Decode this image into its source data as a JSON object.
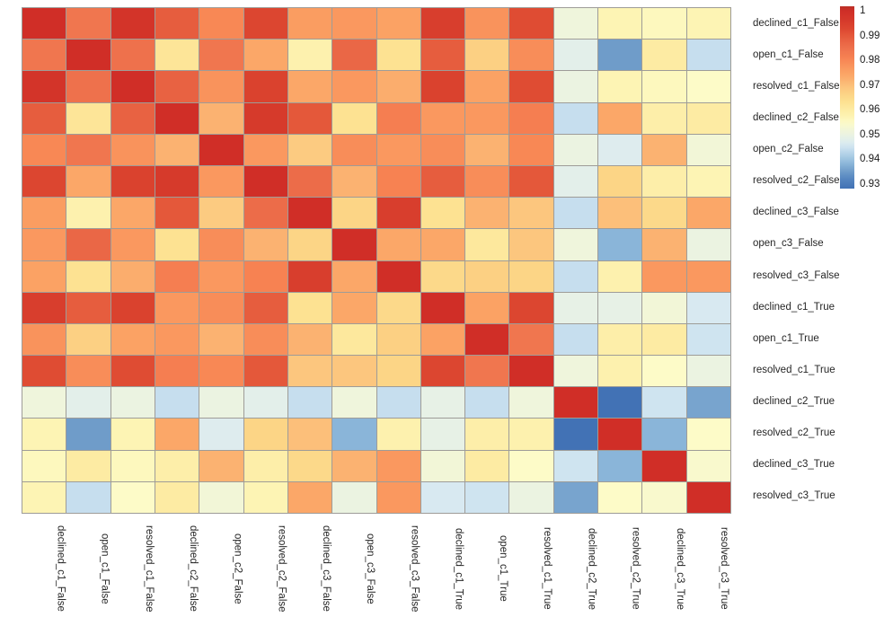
{
  "chart_data": {
    "type": "heatmap",
    "title": "",
    "xlabel": "",
    "ylabel": "",
    "grid_line_color": "#9e9c98",
    "background": "#ffffff",
    "legend_position": "right-top",
    "labels": [
      "declined_c1_False",
      "open_c1_False",
      "resolved_c1_False",
      "declined_c2_False",
      "open_c2_False",
      "resolved_c2_False",
      "declined_c3_False",
      "open_c3_False",
      "resolved_c3_False",
      "declined_c1_True",
      "open_c1_True",
      "resolved_c1_True",
      "declined_c2_True",
      "resolved_c2_True",
      "declined_c3_True",
      "resolved_c3_True"
    ],
    "matrix": [
      [
        1.0,
        0.984,
        0.998,
        0.989,
        0.98,
        0.993,
        0.976,
        0.977,
        0.975,
        0.995,
        0.978,
        0.992,
        0.951,
        0.957,
        0.956,
        0.957
      ],
      [
        0.984,
        1.0,
        0.985,
        0.962,
        0.984,
        0.974,
        0.958,
        0.987,
        0.963,
        0.989,
        0.967,
        0.979,
        0.948,
        0.935,
        0.96,
        0.944
      ],
      [
        0.998,
        0.985,
        1.0,
        0.988,
        0.978,
        0.994,
        0.974,
        0.977,
        0.973,
        0.994,
        0.975,
        0.992,
        0.95,
        0.957,
        0.956,
        0.955
      ],
      [
        0.989,
        0.962,
        0.988,
        1.0,
        0.972,
        0.996,
        0.99,
        0.963,
        0.982,
        0.977,
        0.977,
        0.982,
        0.944,
        0.974,
        0.959,
        0.96
      ],
      [
        0.98,
        0.984,
        0.978,
        0.972,
        1.0,
        0.977,
        0.968,
        0.979,
        0.977,
        0.979,
        0.972,
        0.98,
        0.95,
        0.947,
        0.972,
        0.952
      ],
      [
        0.993,
        0.974,
        0.994,
        0.996,
        0.977,
        1.0,
        0.986,
        0.972,
        0.981,
        0.989,
        0.979,
        0.99,
        0.948,
        0.966,
        0.959,
        0.957
      ],
      [
        0.976,
        0.958,
        0.974,
        0.99,
        0.968,
        0.986,
        1.0,
        0.966,
        0.995,
        0.963,
        0.972,
        0.969,
        0.944,
        0.97,
        0.965,
        0.974
      ],
      [
        0.977,
        0.987,
        0.977,
        0.963,
        0.979,
        0.972,
        0.966,
        1.0,
        0.974,
        0.974,
        0.961,
        0.969,
        0.951,
        0.938,
        0.972,
        0.95
      ],
      [
        0.975,
        0.963,
        0.973,
        0.982,
        0.977,
        0.981,
        0.995,
        0.974,
        1.0,
        0.965,
        0.967,
        0.966,
        0.944,
        0.958,
        0.977,
        0.977
      ],
      [
        0.995,
        0.989,
        0.994,
        0.977,
        0.979,
        0.989,
        0.963,
        0.974,
        0.965,
        1.0,
        0.975,
        0.993,
        0.949,
        0.949,
        0.952,
        0.946
      ],
      [
        0.978,
        0.967,
        0.975,
        0.977,
        0.972,
        0.979,
        0.972,
        0.961,
        0.967,
        0.975,
        1.0,
        0.984,
        0.944,
        0.959,
        0.96,
        0.945
      ],
      [
        0.992,
        0.979,
        0.992,
        0.982,
        0.98,
        0.99,
        0.969,
        0.969,
        0.966,
        0.993,
        0.984,
        1.0,
        0.951,
        0.958,
        0.955,
        0.95
      ],
      [
        0.951,
        0.948,
        0.95,
        0.944,
        0.95,
        0.948,
        0.944,
        0.951,
        0.944,
        0.949,
        0.944,
        0.951,
        1.0,
        0.928,
        0.945,
        0.936
      ],
      [
        0.957,
        0.935,
        0.957,
        0.974,
        0.947,
        0.966,
        0.97,
        0.938,
        0.958,
        0.949,
        0.959,
        0.958,
        0.928,
        1.0,
        0.938,
        0.955
      ],
      [
        0.956,
        0.96,
        0.956,
        0.959,
        0.972,
        0.959,
        0.965,
        0.972,
        0.977,
        0.952,
        0.96,
        0.955,
        0.945,
        0.938,
        1.0,
        0.954
      ],
      [
        0.957,
        0.944,
        0.955,
        0.96,
        0.952,
        0.957,
        0.974,
        0.95,
        0.977,
        0.946,
        0.945,
        0.95,
        0.936,
        0.955,
        0.954,
        1.0
      ]
    ],
    "colorbar": {
      "ticks": [
        "1",
        "0.99",
        "0.98",
        "0.97",
        "0.96",
        "0.95",
        "0.94",
        "0.93"
      ]
    },
    "colormap": {
      "name": "RdYlBu_r",
      "stops": [
        [
          0.928,
          "#4272b5"
        ],
        [
          0.932,
          "#5585c0"
        ],
        [
          0.935,
          "#6f9cc9"
        ],
        [
          0.938,
          "#8ab5d9"
        ],
        [
          0.941,
          "#a9cbe3"
        ],
        [
          0.944,
          "#c6deee"
        ],
        [
          0.946,
          "#d8e9f1"
        ],
        [
          0.948,
          "#e3efea"
        ],
        [
          0.95,
          "#ebf3e1"
        ],
        [
          0.952,
          "#f2f6d7"
        ],
        [
          0.955,
          "#fdfbc8"
        ],
        [
          0.957,
          "#fdf4b4"
        ],
        [
          0.96,
          "#fdeba3"
        ],
        [
          0.963,
          "#fde292"
        ],
        [
          0.966,
          "#fcd586"
        ],
        [
          0.969,
          "#fcc67e"
        ],
        [
          0.972,
          "#fbb271"
        ],
        [
          0.975,
          "#fba264"
        ],
        [
          0.978,
          "#f9935c"
        ],
        [
          0.981,
          "#f78252"
        ],
        [
          0.984,
          "#f0764f"
        ],
        [
          0.987,
          "#ea6746"
        ],
        [
          0.99,
          "#e4583a"
        ],
        [
          0.993,
          "#dc4630"
        ],
        [
          0.996,
          "#d63a2b"
        ],
        [
          1.0,
          "#d02e27"
        ],
        [
          1.002,
          "#ba3127"
        ]
      ]
    }
  }
}
